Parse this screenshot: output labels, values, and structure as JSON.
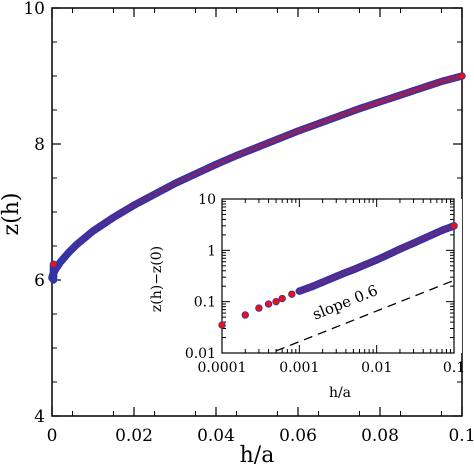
{
  "chart_data": [
    {
      "type": "scatter",
      "title": "",
      "xlabel": "h/a",
      "ylabel": "z(h)",
      "xlim": [
        0,
        0.1
      ],
      "ylim": [
        4,
        10
      ],
      "xticks": [
        "0",
        "0.02",
        "0.04",
        "0.06",
        "0.08",
        "0.1"
      ],
      "yticks": [
        "4",
        "6",
        "8",
        "10"
      ],
      "grid": false,
      "marker_fill": "#ee1111",
      "marker_edge": "#3333aa",
      "series": [
        {
          "x": [
            0,
            0.0001,
            0.0003,
            0.0006,
            0.001,
            0.002,
            0.003,
            0.004,
            0.006,
            0.008,
            0.01,
            0.012,
            0.015,
            0.02,
            0.025,
            0.03,
            0.035,
            0.04,
            0.045,
            0.05,
            0.055,
            0.06,
            0.065,
            0.07,
            0.075,
            0.08,
            0.085,
            0.09,
            0.095,
            0.1
          ],
          "y": [
            6.03,
            6.06,
            6.09,
            6.13,
            6.17,
            6.26,
            6.33,
            6.4,
            6.52,
            6.62,
            6.72,
            6.8,
            6.92,
            7.1,
            7.26,
            7.42,
            7.56,
            7.7,
            7.83,
            7.95,
            8.07,
            8.19,
            8.3,
            8.41,
            8.52,
            8.62,
            8.72,
            8.82,
            8.92,
            9.0
          ]
        }
      ]
    },
    {
      "type": "scatter",
      "title": "",
      "xlabel": "h/a",
      "ylabel": "z(h)−z(0)",
      "xscale": "log",
      "yscale": "log",
      "xlim": [
        0.0001,
        0.1
      ],
      "ylim": [
        0.01,
        10
      ],
      "xticks": [
        "0.0001",
        "0.001",
        "0.01",
        "0.1"
      ],
      "yticks": [
        "0.01",
        "0.1",
        "1",
        "10"
      ],
      "grid": false,
      "annotations": [
        "slope 0.6"
      ],
      "reference_line": {
        "slope": 0.6,
        "x": [
          0.0005,
          0.1
        ],
        "y": [
          0.011,
          0.26
        ],
        "style": "dashed"
      },
      "series": [
        {
          "x": [
            0.0001,
            0.0002,
            0.0003,
            0.0004,
            0.0005,
            0.0006,
            0.0008,
            0.001,
            0.0015,
            0.002,
            0.003,
            0.004,
            0.005,
            0.007,
            0.01,
            0.015,
            0.02,
            0.03,
            0.04,
            0.05,
            0.07,
            0.1
          ],
          "y": [
            0.035,
            0.055,
            0.075,
            0.09,
            0.1,
            0.115,
            0.14,
            0.16,
            0.2,
            0.24,
            0.31,
            0.37,
            0.42,
            0.52,
            0.65,
            0.86,
            1.06,
            1.38,
            1.68,
            1.95,
            2.45,
            3.0
          ]
        }
      ]
    }
  ]
}
